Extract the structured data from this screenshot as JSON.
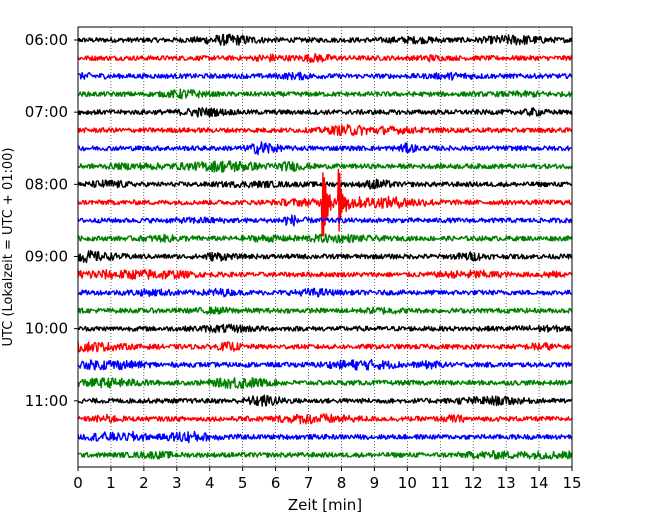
{
  "chart_data": {
    "type": "line",
    "title": "",
    "xlabel": "Zeit  [min]",
    "ylabel": "UTC (Lokalzeit = UTC + 01:00)",
    "xlim": [
      0,
      15
    ],
    "x_ticks": [
      0,
      1,
      2,
      3,
      4,
      5,
      6,
      7,
      8,
      9,
      10,
      11,
      12,
      13,
      14,
      15
    ],
    "x_tick_labels": [
      "0",
      "1",
      "2",
      "3",
      "4",
      "5",
      "6",
      "7",
      "8",
      "9",
      "10",
      "11",
      "12",
      "13",
      "14",
      "15"
    ],
    "grid": "vertical-dotted",
    "trace_interval_min": 15,
    "trace_colors": [
      "#000000",
      "#ff0000",
      "#0000ff",
      "#008000"
    ],
    "y_tick_labels": [
      "06:00",
      "07:00",
      "08:00",
      "09:00",
      "10:00",
      "11:00"
    ],
    "y_tick_trace_index": [
      0,
      4,
      8,
      12,
      16,
      20
    ],
    "series": [
      {
        "start": "06:00",
        "color": "#000000"
      },
      {
        "start": "06:15",
        "color": "#ff0000"
      },
      {
        "start": "06:30",
        "color": "#0000ff"
      },
      {
        "start": "06:45",
        "color": "#008000"
      },
      {
        "start": "07:00",
        "color": "#000000"
      },
      {
        "start": "07:15",
        "color": "#ff0000"
      },
      {
        "start": "07:30",
        "color": "#0000ff"
      },
      {
        "start": "07:45",
        "color": "#008000"
      },
      {
        "start": "08:00",
        "color": "#000000"
      },
      {
        "start": "08:15",
        "color": "#ff0000"
      },
      {
        "start": "08:30",
        "color": "#0000ff"
      },
      {
        "start": "08:45",
        "color": "#008000"
      },
      {
        "start": "09:00",
        "color": "#000000"
      },
      {
        "start": "09:15",
        "color": "#ff0000"
      },
      {
        "start": "09:30",
        "color": "#0000ff"
      },
      {
        "start": "09:45",
        "color": "#008000"
      },
      {
        "start": "10:00",
        "color": "#000000"
      },
      {
        "start": "10:15",
        "color": "#ff0000"
      },
      {
        "start": "10:30",
        "color": "#0000ff"
      },
      {
        "start": "10:45",
        "color": "#008000"
      },
      {
        "start": "11:00",
        "color": "#000000"
      },
      {
        "start": "11:15",
        "color": "#ff0000"
      },
      {
        "start": "11:30",
        "color": "#0000ff"
      },
      {
        "start": "11:45",
        "color": "#008000"
      }
    ],
    "events": [
      {
        "trace": "08:15",
        "t_min": 7.45,
        "amplitude": 0.95
      },
      {
        "trace": "08:15",
        "t_min": 7.95,
        "amplitude": 0.85
      }
    ]
  }
}
